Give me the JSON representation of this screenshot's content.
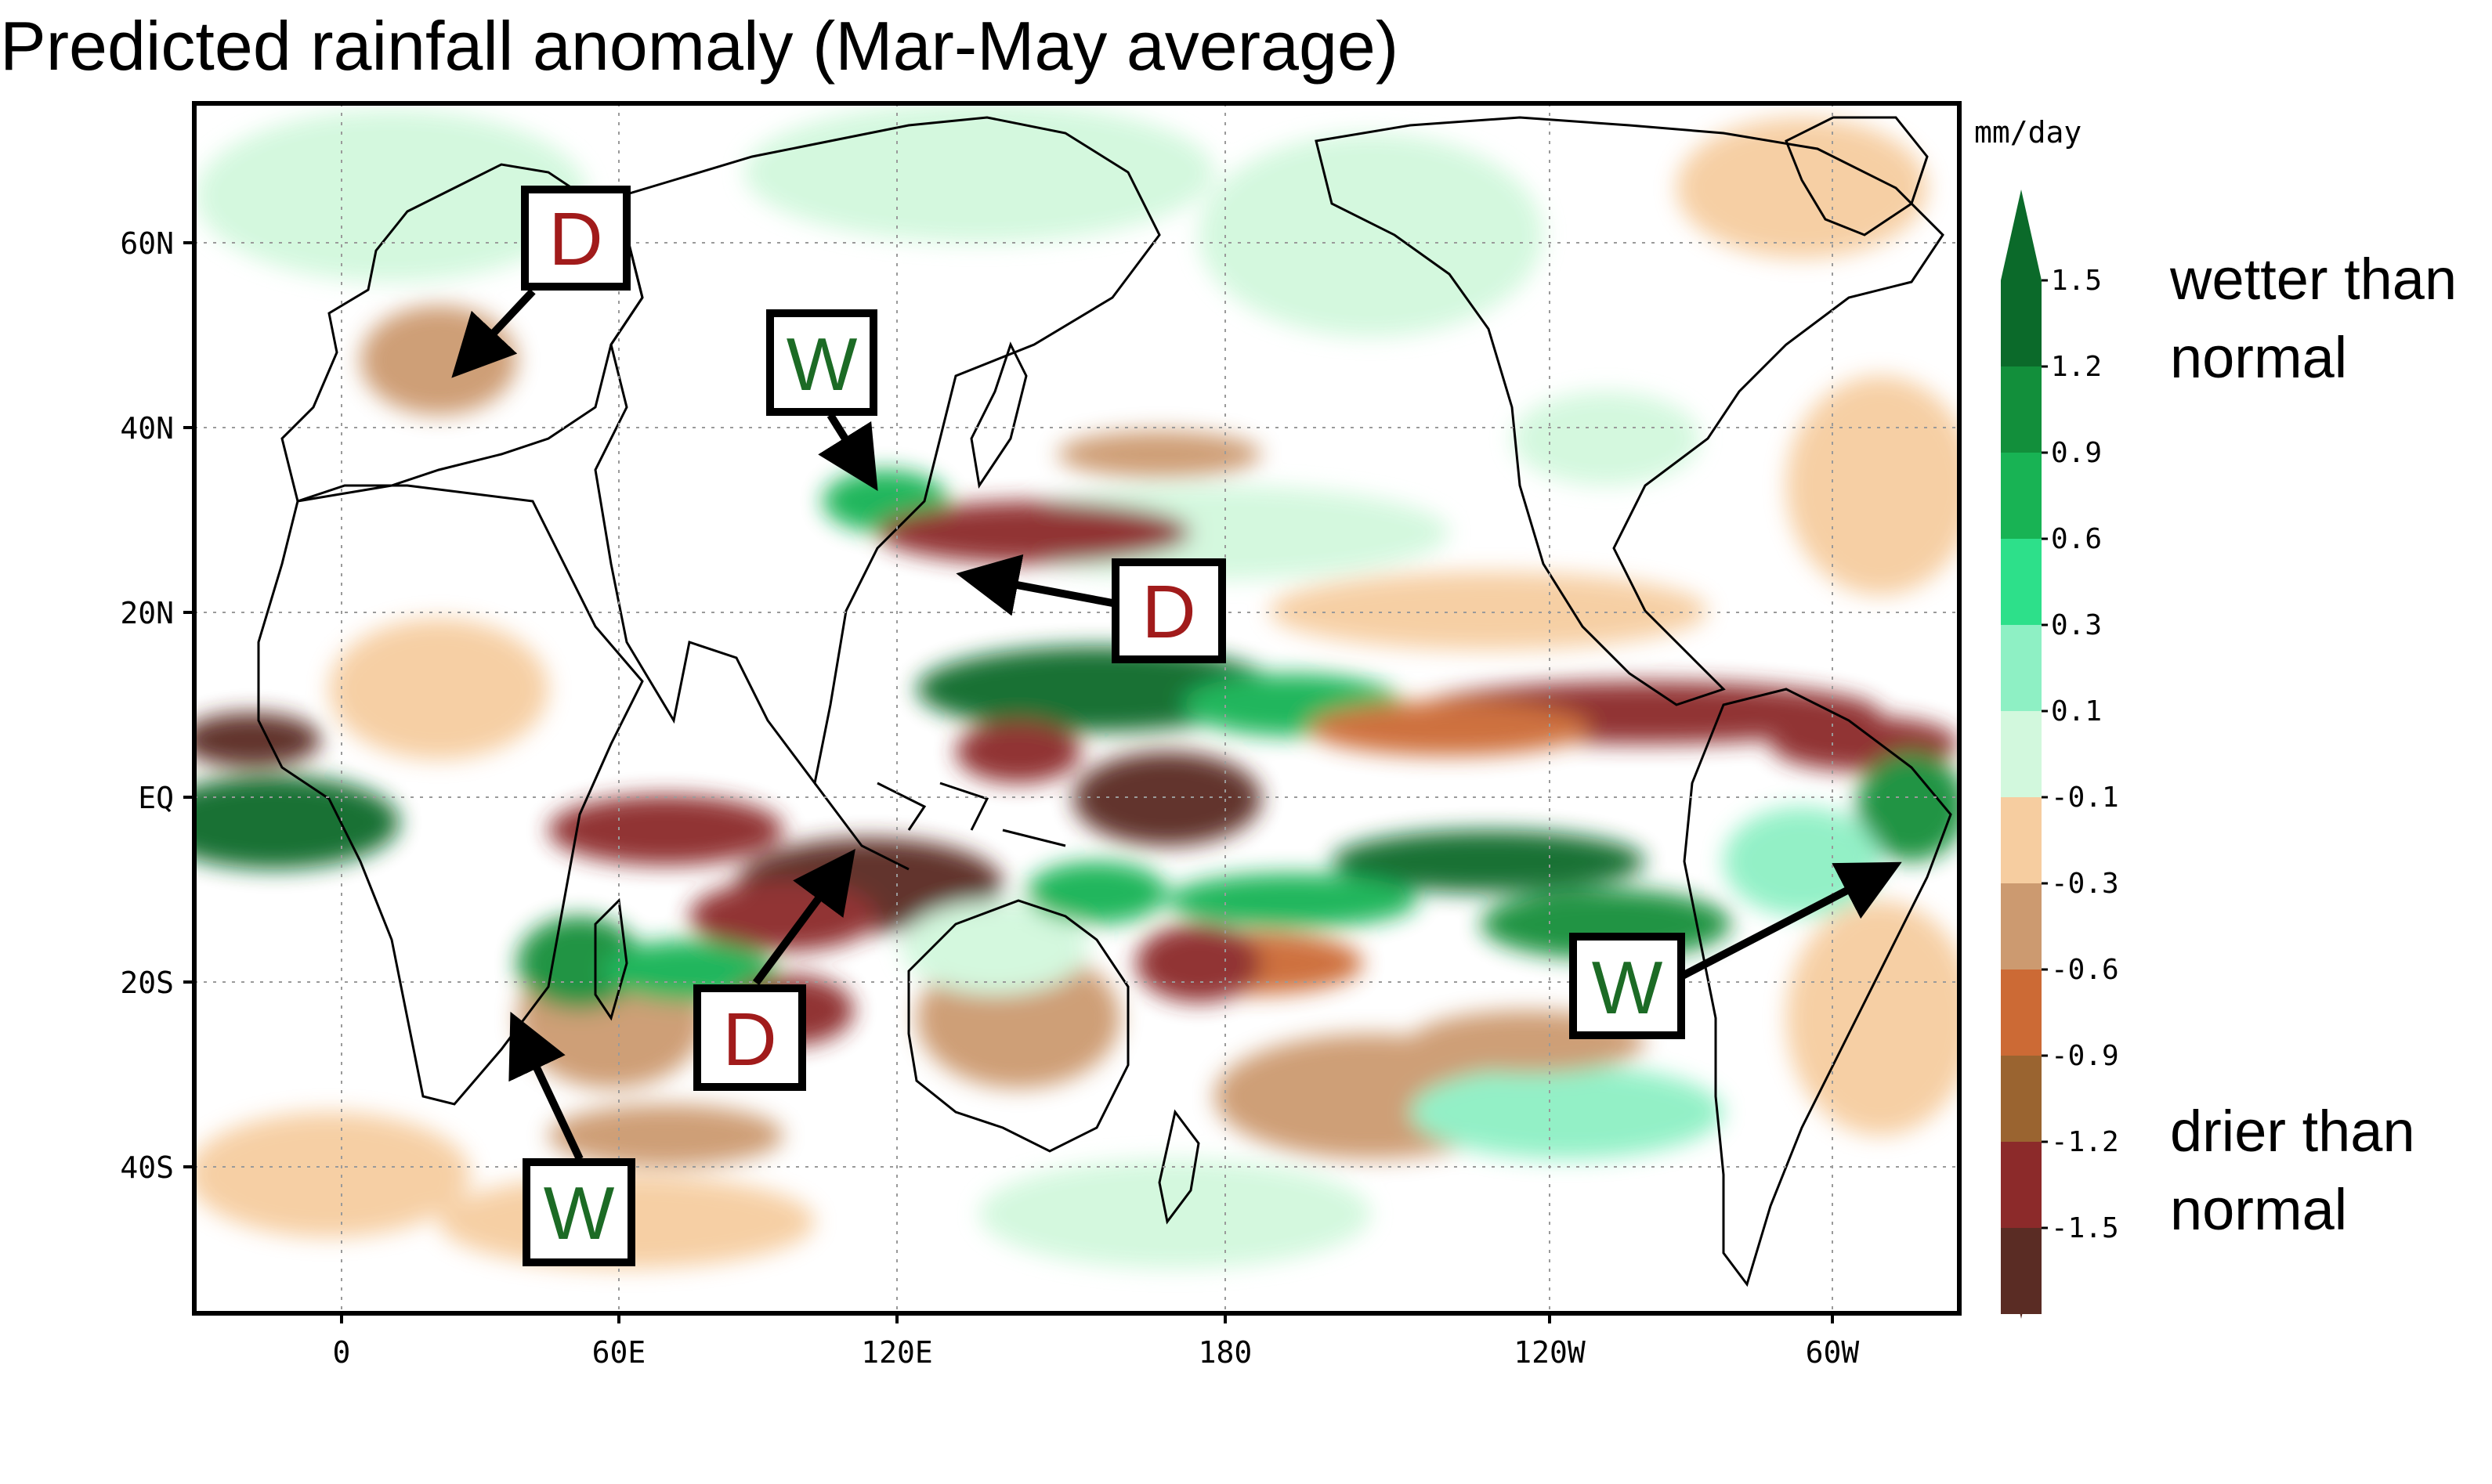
{
  "title": "Predicted rainfall anomaly (Mar-May average)",
  "axes": {
    "lat_labels": [
      "60N",
      "40N",
      "20N",
      "EQ",
      "20S",
      "40S"
    ],
    "lon_labels": [
      "0",
      "60E",
      "120E",
      "180",
      "120W",
      "60W"
    ]
  },
  "colorbar": {
    "unit": "mm/day",
    "ticks": [
      "1.5",
      "1.2",
      "0.9",
      "0.6",
      "0.3",
      "0.1",
      "-0.1",
      "-0.3",
      "-0.6",
      "-0.9",
      "-1.2",
      "-1.5"
    ],
    "wet_colors": [
      "#0b6a2a",
      "#128f3b",
      "#18b354",
      "#2de08a",
      "#8ef0c4",
      "#d2f8dd"
    ],
    "dry_colors": [
      "#f6cda0",
      "#cc9a70",
      "#cc6a35",
      "#9a6430",
      "#8c2a2a",
      "#5a2c24"
    ],
    "wet_text_line1": "wetter than",
    "wet_text_line2": "normal",
    "dry_text_line1": "drier than",
    "dry_text_line2": "normal"
  },
  "annotations": [
    {
      "label": "D",
      "kind": "dry",
      "region": "Europe"
    },
    {
      "label": "W",
      "kind": "wet",
      "region": "East China / Korea"
    },
    {
      "label": "D",
      "kind": "dry",
      "region": "Western North Pacific / Japan"
    },
    {
      "label": "D",
      "kind": "dry",
      "region": "Indonesia"
    },
    {
      "label": "W",
      "kind": "wet",
      "region": "Southeast Africa"
    },
    {
      "label": "W",
      "kind": "wet",
      "region": "Northeast Brazil"
    }
  ],
  "colors": {
    "dry_label": "#a11b1b",
    "wet_label": "#1c6b25"
  }
}
